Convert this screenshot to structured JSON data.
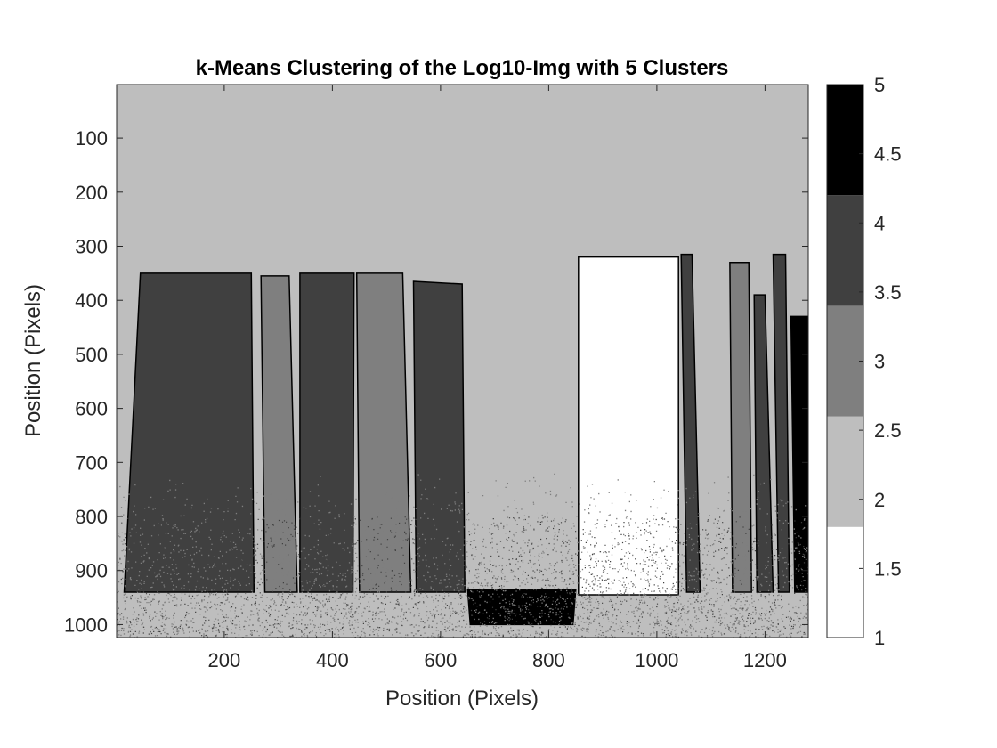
{
  "chart_data": {
    "type": "heatmap",
    "title": "k-Means Clustering of the Log10-Img with 5 Clusters",
    "xlabel": "Position (Pixels)",
    "ylabel": "Position (Pixels)",
    "xlim": [
      1,
      1280
    ],
    "ylim": [
      1,
      1024
    ],
    "y_reversed": true,
    "x_ticks": [
      200,
      400,
      600,
      800,
      1000,
      1200
    ],
    "y_ticks": [
      100,
      200,
      300,
      400,
      500,
      600,
      700,
      800,
      900,
      1000
    ],
    "clusters": [
      1,
      2,
      3,
      4,
      5
    ],
    "colormap": [
      "#ffffff",
      "#bebebe",
      "#7f7f7f",
      "#404040",
      "#000000"
    ],
    "colorbar": {
      "range": [
        1,
        5
      ],
      "ticks": [
        1,
        1.5,
        2,
        2.5,
        3,
        3.5,
        4,
        4.5,
        5
      ],
      "tick_labels": [
        "1",
        "1.5",
        "2",
        "2.5",
        "3",
        "3.5",
        "4",
        "4.5",
        "5"
      ]
    },
    "background_cluster": 2,
    "regions": [
      {
        "cluster": 4,
        "polygon": [
          [
            45,
            350
          ],
          [
            250,
            350
          ],
          [
            255,
            940
          ],
          [
            15,
            940
          ]
        ]
      },
      {
        "cluster": 3,
        "polygon": [
          [
            268,
            355
          ],
          [
            320,
            355
          ],
          [
            335,
            940
          ],
          [
            275,
            940
          ]
        ]
      },
      {
        "cluster": 4,
        "polygon": [
          [
            340,
            350
          ],
          [
            440,
            350
          ],
          [
            438,
            940
          ],
          [
            340,
            940
          ]
        ]
      },
      {
        "cluster": 3,
        "polygon": [
          [
            445,
            350
          ],
          [
            530,
            350
          ],
          [
            545,
            940
          ],
          [
            450,
            940
          ]
        ]
      },
      {
        "cluster": 4,
        "polygon": [
          [
            550,
            365
          ],
          [
            640,
            370
          ],
          [
            645,
            940
          ],
          [
            555,
            940
          ]
        ]
      },
      {
        "cluster": 1,
        "polygon": [
          [
            855,
            320
          ],
          [
            1040,
            320
          ],
          [
            1040,
            945
          ],
          [
            855,
            945
          ]
        ]
      },
      {
        "cluster": 4,
        "polygon": [
          [
            1045,
            315
          ],
          [
            1065,
            315
          ],
          [
            1080,
            940
          ],
          [
            1055,
            940
          ]
        ]
      },
      {
        "cluster": 3,
        "polygon": [
          [
            1135,
            330
          ],
          [
            1170,
            330
          ],
          [
            1175,
            940
          ],
          [
            1140,
            940
          ]
        ]
      },
      {
        "cluster": 4,
        "polygon": [
          [
            1180,
            390
          ],
          [
            1200,
            390
          ],
          [
            1215,
            940
          ],
          [
            1185,
            940
          ]
        ]
      },
      {
        "cluster": 4,
        "polygon": [
          [
            1215,
            315
          ],
          [
            1238,
            315
          ],
          [
            1245,
            940
          ],
          [
            1225,
            940
          ]
        ]
      },
      {
        "cluster": 5,
        "polygon": [
          [
            1248,
            430
          ],
          [
            1280,
            430
          ],
          [
            1280,
            940
          ],
          [
            1255,
            940
          ]
        ]
      },
      {
        "cluster": 5,
        "polygon": [
          [
            650,
            935
          ],
          [
            850,
            935
          ],
          [
            845,
            1000
          ],
          [
            655,
            1000
          ]
        ]
      }
    ]
  }
}
